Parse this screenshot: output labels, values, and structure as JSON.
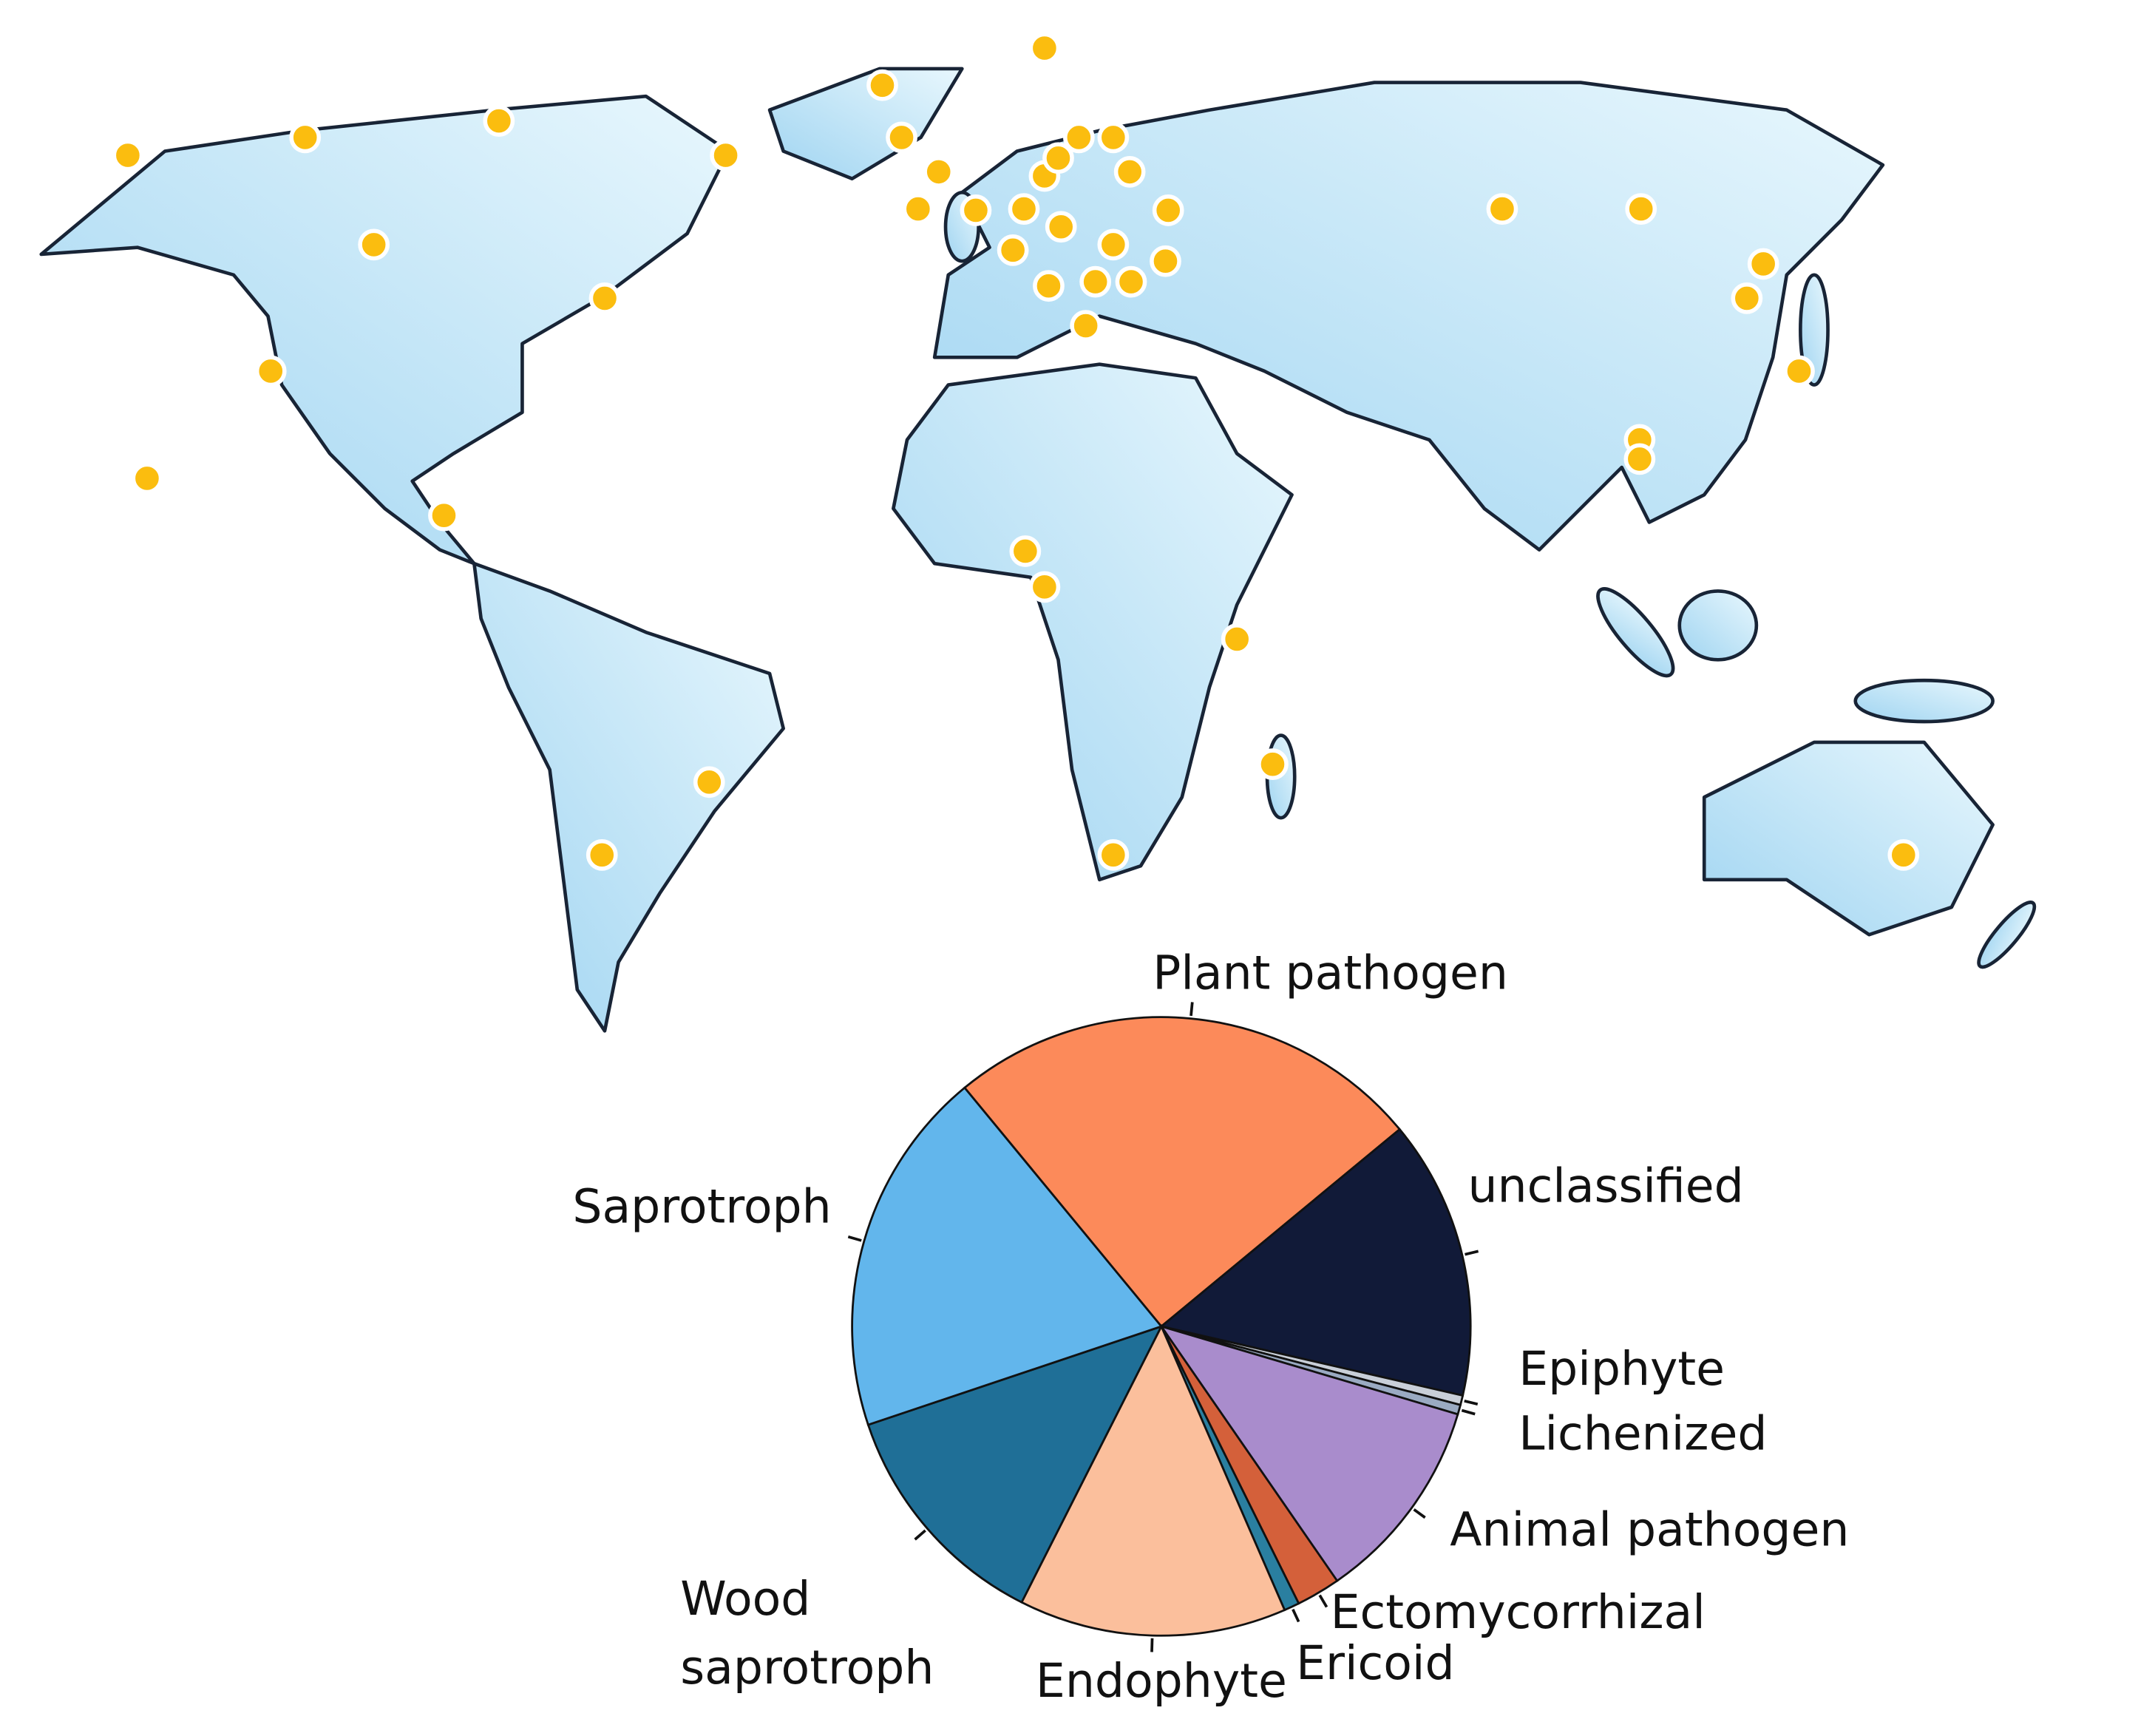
{
  "chart_data": {
    "type": "pie",
    "categories": [
      "Plant pathogen",
      "unclassified",
      "Epiphyte",
      "Lichenized",
      "Animal pathogen",
      "Ectomycorrhizal",
      "Ericoid",
      "Endophyte",
      "Wood saprotroph",
      "Saprotroph"
    ],
    "values": [
      25,
      14.6,
      0.5,
      0.5,
      10.8,
      2.3,
      0.8,
      14,
      12.4,
      19.2
    ],
    "colors": [
      "#fc8a5a",
      "#111a38",
      "#c9cfd8",
      "#9aaac2",
      "#a98ccc",
      "#d4603a",
      "#2a7fa0",
      "#fbbf9c",
      "#1f6f97",
      "#62b6ec"
    ]
  }
}
